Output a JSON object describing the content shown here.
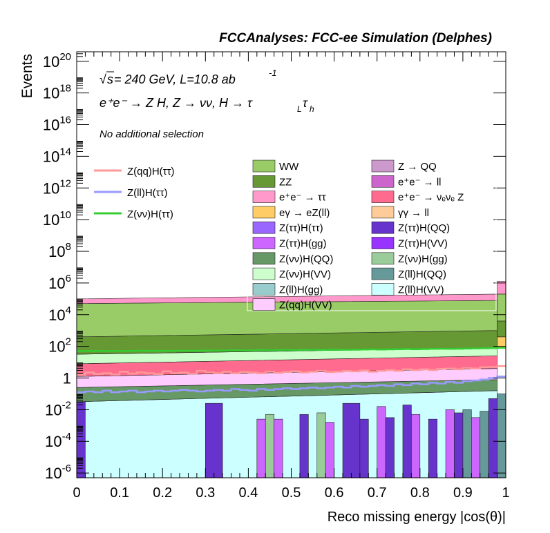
{
  "header": {
    "title": "FCCAnalyses: FCC-ee Simulation (Delphes)",
    "energy_line_sqrt": "s",
    "energy_line_rest": " = 240 GeV, L=10.8 ab",
    "energy_line_exp": "-1",
    "process_line_main": "e⁺e⁻ → Z H, Z → νν, H → τ",
    "process_line_sub1": "L",
    "process_line_tau2": "τ",
    "process_line_sub2": "h",
    "selection_label": "No additional selection"
  },
  "chart_data": {
    "type": "area",
    "title": "FCCAnalyses: FCC-ee Simulation (Delphes)",
    "xlabel": "Reco missing energy |cos(θ)|",
    "ylabel": "Events",
    "xlim": [
      0,
      1
    ],
    "ylim_log10": [
      -6.3,
      20.6
    ],
    "yscale": "log",
    "x_ticks": [
      "0",
      "0.1",
      "0.2",
      "0.3",
      "0.4",
      "0.5",
      "0.6",
      "0.7",
      "0.8",
      "0.9",
      "1"
    ],
    "y_ticks": [
      {
        "base": "10",
        "exp": "-6",
        "log": -6
      },
      {
        "base": "10",
        "exp": "-4",
        "log": -4
      },
      {
        "base": "10",
        "exp": "-2",
        "log": -2
      },
      {
        "base": "1",
        "exp": "",
        "log": 0
      },
      {
        "base": "10",
        "exp": "2",
        "log": 2
      },
      {
        "base": "10",
        "exp": "4",
        "log": 4
      },
      {
        "base": "10",
        "exp": "6",
        "log": 6
      },
      {
        "base": "10",
        "exp": "8",
        "log": 8
      },
      {
        "base": "10",
        "exp": "10",
        "log": 10
      },
      {
        "base": "10",
        "exp": "12",
        "log": 12
      },
      {
        "base": "10",
        "exp": "14",
        "log": 14
      },
      {
        "base": "10",
        "exp": "16",
        "log": 16
      },
      {
        "base": "10",
        "exp": "18",
        "log": 18
      },
      {
        "base": "10",
        "exp": "20",
        "log": 20
      }
    ],
    "stack_bands_log10": [
      {
        "name": "Z(ll)H(VV)",
        "color": "#ccffff",
        "lo": -6.3,
        "left": -1.5,
        "right": -0.8
      },
      {
        "name": "Z(νν)H(QQ)",
        "color": "#669966",
        "lo": "prev",
        "left": -0.6,
        "right": -0.1
      },
      {
        "name": "Z(qq)H(VV)",
        "color": "#ffccff",
        "lo": "prev",
        "left": 0.1,
        "right": 0.6
      },
      {
        "name": "e⁺e⁻ → νₑνₑ Z",
        "color": "#ff6b8f",
        "lo": "prev",
        "left": 0.9,
        "right": 1.4
      },
      {
        "name": "Z(νν)H(VV)",
        "color": "#ccffcc",
        "lo": "prev",
        "left": 1.5,
        "right": 1.9
      },
      {
        "name": "ZZ",
        "color": "#669933",
        "lo": "prev",
        "left": 2.6,
        "right": 3.0
      },
      {
        "name": "WW",
        "color": "#99cc66",
        "lo": "prev",
        "left": 4.7,
        "right": 4.9
      },
      {
        "name": "e⁺e⁻ → ττ",
        "color": "#ff99cc",
        "lo": "prev",
        "left": 5.0,
        "right": 5.3
      }
    ],
    "sparse_bars_log10": [
      {
        "x": [
          0.0,
          0.02
        ],
        "top": -1.5,
        "color": "#6633cc"
      },
      {
        "x": [
          0.3,
          0.34
        ],
        "top": -1.6,
        "color": "#6633cc"
      },
      {
        "x": [
          0.42,
          0.44
        ],
        "top": -2.6,
        "color": "#cc66ff"
      },
      {
        "x": [
          0.44,
          0.46
        ],
        "top": -2.3,
        "color": "#99cc99"
      },
      {
        "x": [
          0.46,
          0.48
        ],
        "top": -2.6,
        "color": "#cc66ff"
      },
      {
        "x": [
          0.52,
          0.54
        ],
        "top": -2.3,
        "color": "#6633cc"
      },
      {
        "x": [
          0.56,
          0.58
        ],
        "top": -2.2,
        "color": "#99cc99"
      },
      {
        "x": [
          0.58,
          0.6
        ],
        "top": -2.8,
        "color": "#cc66ff"
      },
      {
        "x": [
          0.62,
          0.66
        ],
        "top": -1.6,
        "color": "#6633cc"
      },
      {
        "x": [
          0.66,
          0.68
        ],
        "top": -2.6,
        "color": "#6633cc"
      },
      {
        "x": [
          0.7,
          0.72
        ],
        "top": -1.8,
        "color": "#cc66ff"
      },
      {
        "x": [
          0.72,
          0.74
        ],
        "top": -2.5,
        "color": "#6633cc"
      },
      {
        "x": [
          0.76,
          0.78
        ],
        "top": -1.7,
        "color": "#6633cc"
      },
      {
        "x": [
          0.78,
          0.8
        ],
        "top": -2.3,
        "color": "#cc66ff"
      },
      {
        "x": [
          0.82,
          0.84
        ],
        "top": -2.6,
        "color": "#6633cc"
      },
      {
        "x": [
          0.86,
          0.88
        ],
        "top": -2.0,
        "color": "#cc66ff"
      },
      {
        "x": [
          0.88,
          0.9
        ],
        "top": -2.2,
        "color": "#6633cc"
      },
      {
        "x": [
          0.9,
          0.92
        ],
        "top": -2.0,
        "color": "#669999"
      },
      {
        "x": [
          0.92,
          0.94
        ],
        "top": -2.5,
        "color": "#cc66ff"
      },
      {
        "x": [
          0.94,
          0.96
        ],
        "top": -2.1,
        "color": "#669999"
      },
      {
        "x": [
          0.96,
          0.98
        ],
        "top": -1.3,
        "color": "#6633cc"
      },
      {
        "x": [
          0.98,
          1.0
        ],
        "top": -1.0,
        "color": "#669999"
      }
    ],
    "edge_spike": {
      "x": [
        0.98,
        1.0
      ],
      "bands_log10": [
        {
          "lo": 1.9,
          "hi": 2.6,
          "color": "#ffcc66"
        },
        {
          "lo": 2.6,
          "hi": 3.6,
          "color": "#669933"
        },
        {
          "lo": 3.6,
          "hi": 5.3,
          "color": "#99cc66"
        },
        {
          "lo": 5.3,
          "hi": 6.1,
          "color": "#ff99cc"
        }
      ]
    },
    "signal_lines": [
      {
        "name": "Z(qq)H(ττ)",
        "color": "#ff9999",
        "bins_log10": [
          0.2,
          0.35,
          0.25,
          0.3,
          0.22,
          0.4,
          0.28,
          0.35,
          0.3,
          0.25,
          0.42,
          0.3,
          0.35,
          0.28,
          0.45,
          0.35,
          0.3,
          0.4,
          0.3,
          0.38,
          0.35,
          0.3,
          0.4,
          0.32,
          0.38,
          0.42,
          0.35,
          0.4,
          0.45,
          0.38,
          0.4,
          0.45,
          0.42,
          0.48,
          0.4,
          0.45,
          0.5,
          0.45,
          0.55,
          0.5,
          0.55,
          0.5,
          0.58,
          0.6,
          0.55,
          0.62,
          0.6,
          0.68,
          0.7,
          0.75
        ]
      },
      {
        "name": "Z(ll)H(ττ)",
        "color": "#9999ff",
        "bins_log10": [
          -0.9,
          -0.85,
          -0.9,
          -0.8,
          -0.9,
          -0.85,
          -0.8,
          -0.9,
          -0.85,
          -0.8,
          -0.85,
          -0.8,
          -0.75,
          -0.8,
          -0.85,
          -0.8,
          -0.75,
          -0.8,
          -0.7,
          -0.75,
          -0.8,
          -0.7,
          -0.75,
          -0.7,
          -0.65,
          -0.7,
          -0.65,
          -0.6,
          -0.65,
          -0.6,
          -0.55,
          -0.6,
          -0.5,
          -0.55,
          -0.5,
          -0.45,
          -0.5,
          -0.4,
          -0.45,
          -0.35,
          -0.4,
          -0.3,
          -0.35,
          -0.25,
          -0.3,
          -0.2,
          -0.15,
          -0.1,
          0.0,
          0.1
        ]
      },
      {
        "name": "Z(νν)H(ττ)",
        "color": "#33cc33",
        "bins_log10": [
          1.7,
          1.7,
          1.71,
          1.7,
          1.71,
          1.7,
          1.71,
          1.72,
          1.71,
          1.72,
          1.71,
          1.72,
          1.73,
          1.72,
          1.73,
          1.74,
          1.73,
          1.74,
          1.75,
          1.74,
          1.75,
          1.76,
          1.75,
          1.76,
          1.77,
          1.76,
          1.77,
          1.78,
          1.77,
          1.78,
          1.79,
          1.78,
          1.79,
          1.8,
          1.81,
          1.8,
          1.81,
          1.82,
          1.83,
          1.82,
          1.83,
          1.84,
          1.85,
          1.84,
          1.85,
          1.86,
          1.87,
          1.88,
          1.89,
          1.9
        ]
      }
    ],
    "signal_legend": [
      {
        "label": "Z(qq)H(ττ)",
        "color": "#ff9999"
      },
      {
        "label": "Z(ll)H(ττ)",
        "color": "#9999ff"
      },
      {
        "label": "Z(νν)H(ττ)",
        "color": "#33cc33"
      }
    ],
    "background_legend": [
      {
        "label": "WW",
        "color": "#99cc66"
      },
      {
        "label": "Z → QQ",
        "color": "#cc99cc"
      },
      {
        "label": "ZZ",
        "color": "#669933"
      },
      {
        "label": "e⁺e⁻ → ll",
        "color": "#cc66cc"
      },
      {
        "label": "e⁺e⁻ → ττ",
        "color": "#ff99cc"
      },
      {
        "label": "e⁺e⁻ → νₑνₑ Z",
        "color": "#ff6b8f"
      },
      {
        "label": "eγ → eZ(ll)",
        "color": "#ffcc66"
      },
      {
        "label": "γγ → ll",
        "color": "#ffcc99"
      },
      {
        "label": "Z(ττ)H(ττ)",
        "color": "#9966ff"
      },
      {
        "label": "Z(ττ)H(QQ)",
        "color": "#6633cc"
      },
      {
        "label": "Z(ττ)H(gg)",
        "color": "#cc66ff"
      },
      {
        "label": "Z(ττ)H(VV)",
        "color": "#9933ff"
      },
      {
        "label": "Z(νν)H(QQ)",
        "color": "#669966"
      },
      {
        "label": "Z(νν)H(gg)",
        "color": "#99cc99"
      },
      {
        "label": "Z(νν)H(VV)",
        "color": "#ccffcc"
      },
      {
        "label": "Z(ll)H(QQ)",
        "color": "#669999"
      },
      {
        "label": "Z(ll)H(gg)",
        "color": "#99cccc"
      },
      {
        "label": "Z(ll)H(VV)",
        "color": "#ccffff"
      },
      {
        "label": "Z(qq)H(VV)",
        "color": "#ffccff"
      }
    ]
  }
}
